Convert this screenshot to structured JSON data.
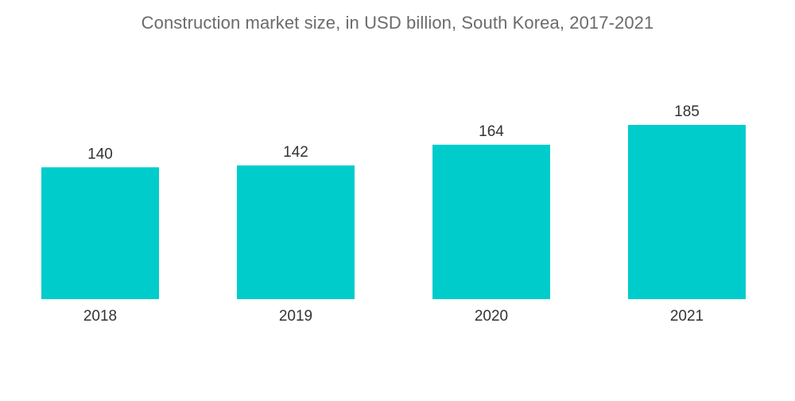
{
  "chart_data": {
    "type": "bar",
    "title": "Construction market size, in USD billion, South Korea, 2017-2021",
    "categories": [
      "2018",
      "2019",
      "2020",
      "2021"
    ],
    "values": [
      140,
      142,
      164,
      185
    ],
    "data_labels": [
      "140",
      "142",
      "164",
      "185"
    ],
    "xlabel": "",
    "ylabel": "",
    "ylim": [
      0,
      185
    ],
    "grid": false,
    "legend": "none",
    "bar_color": "#00CCCC"
  }
}
